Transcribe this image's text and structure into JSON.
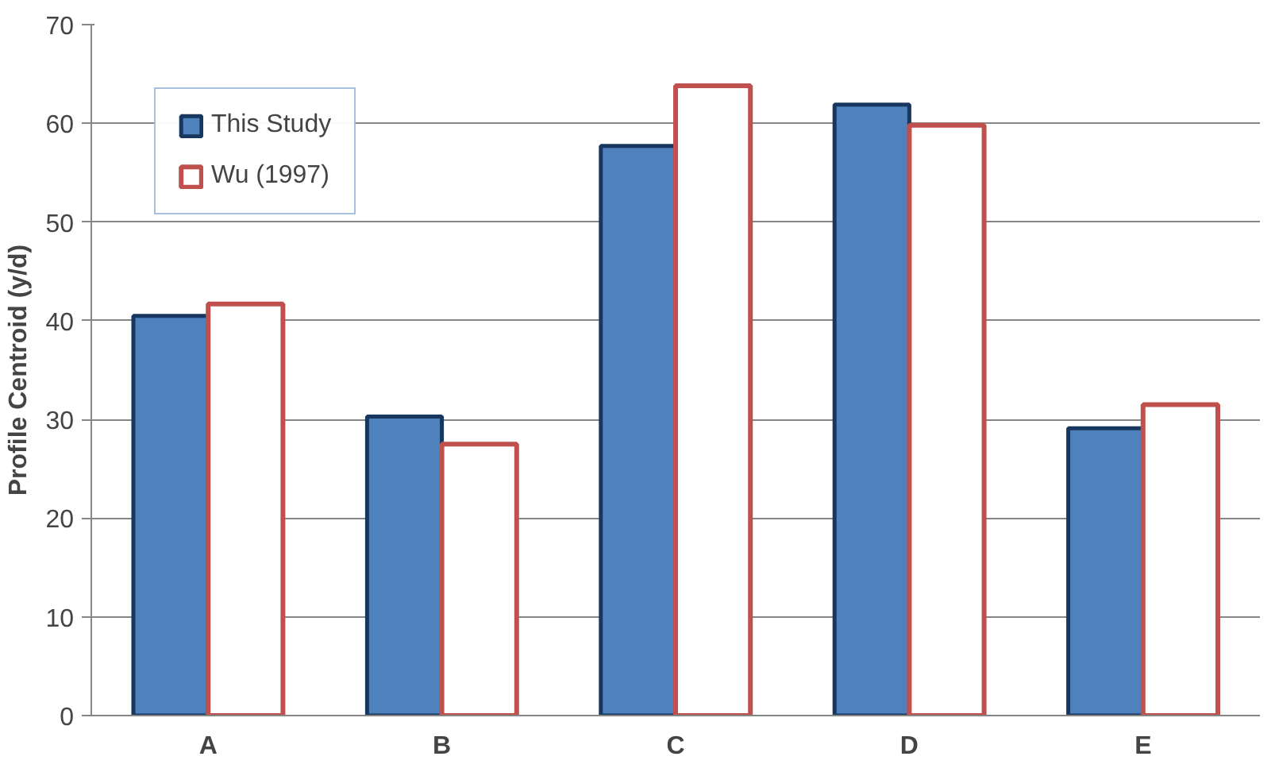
{
  "chart_data": {
    "type": "bar",
    "ylabel": "Profile Centroid (y/d)",
    "categories": [
      "A",
      "B",
      "C",
      "D",
      "E"
    ],
    "series": [
      {
        "name": "This Study",
        "color": "#4f81bd",
        "values": [
          40.5,
          30.3,
          57.7,
          61.9,
          29.1
        ]
      },
      {
        "name": "Wu (1997)",
        "color": "#c0504d",
        "values": [
          41.7,
          27.5,
          63.8,
          59.8,
          31.5
        ]
      }
    ],
    "ylim": [
      0,
      70
    ],
    "yticks": [
      0,
      10,
      20,
      30,
      40,
      50,
      60,
      70
    ],
    "grid": "y",
    "legend": "top left"
  }
}
